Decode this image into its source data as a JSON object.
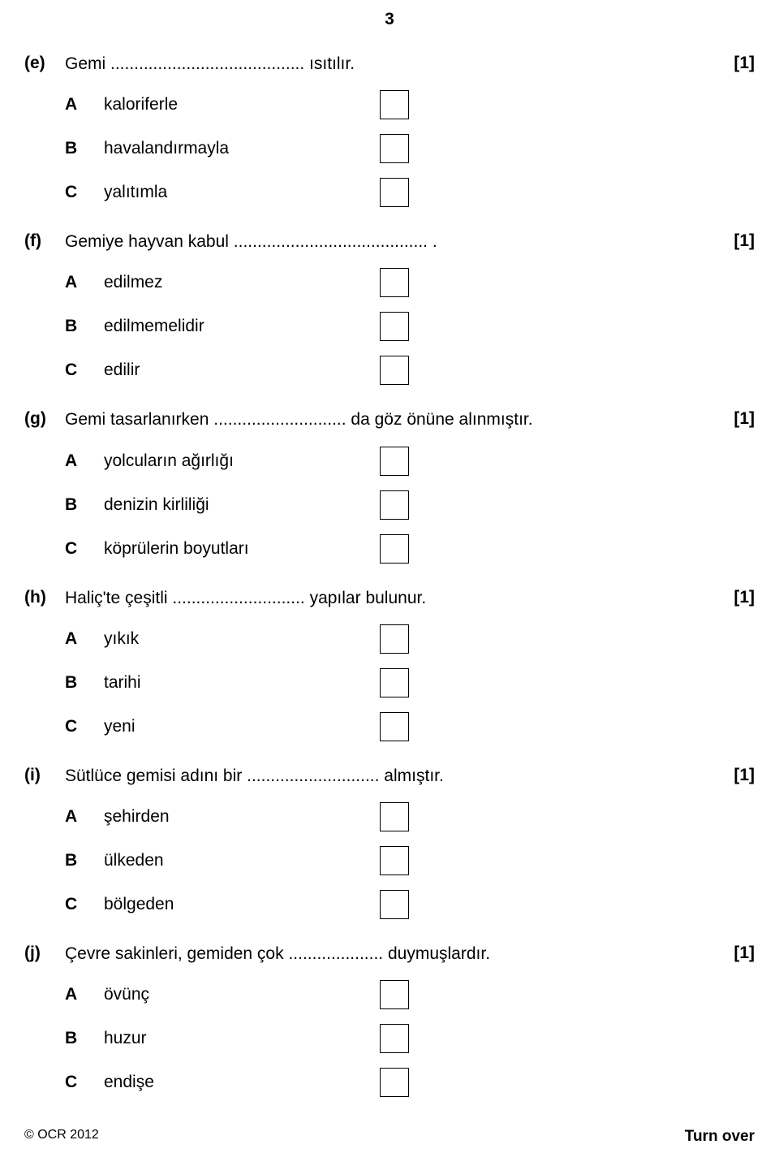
{
  "page_number": "3",
  "points_label": "[1]",
  "questions": [
    {
      "marker": "(e)",
      "text": "Gemi ......................................... ısıtılır.",
      "options": [
        {
          "letter": "A",
          "text": "kaloriferle"
        },
        {
          "letter": "B",
          "text": "havalandırmayla"
        },
        {
          "letter": "C",
          "text": "yalıtımla"
        }
      ]
    },
    {
      "marker": "(f)",
      "text": "Gemiye hayvan kabul ......................................... .",
      "options": [
        {
          "letter": "A",
          "text": "edilmez"
        },
        {
          "letter": "B",
          "text": "edilmemelidir"
        },
        {
          "letter": "C",
          "text": "edilir"
        }
      ]
    },
    {
      "marker": "(g)",
      "text": "Gemi tasarlanırken ............................ da göz önüne alınmıştır.",
      "options": [
        {
          "letter": "A",
          "text": "yolcuların ağırlığı"
        },
        {
          "letter": "B",
          "text": "denizin kirliliği"
        },
        {
          "letter": "C",
          "text": "köprülerin boyutları"
        }
      ]
    },
    {
      "marker": "(h)",
      "text": "Haliç'te çeşitli ............................ yapılar bulunur.",
      "options": [
        {
          "letter": "A",
          "text": "yıkık"
        },
        {
          "letter": "B",
          "text": "tarihi"
        },
        {
          "letter": "C",
          "text": "yeni"
        }
      ]
    },
    {
      "marker": "(i)",
      "text": "Sütlüce gemisi adını bir ............................ almıştır.",
      "options": [
        {
          "letter": "A",
          "text": "şehirden"
        },
        {
          "letter": "B",
          "text": "ülkeden"
        },
        {
          "letter": "C",
          "text": "bölgeden"
        }
      ]
    },
    {
      "marker": "(j)",
      "text": "Çevre sakinleri, gemiden çok .................... duymuşlardır.",
      "options": [
        {
          "letter": "A",
          "text": "övünç"
        },
        {
          "letter": "B",
          "text": "huzur"
        },
        {
          "letter": "C",
          "text": "endişe"
        }
      ]
    }
  ],
  "footer": {
    "left": "© OCR 2012",
    "right": "Turn over"
  }
}
